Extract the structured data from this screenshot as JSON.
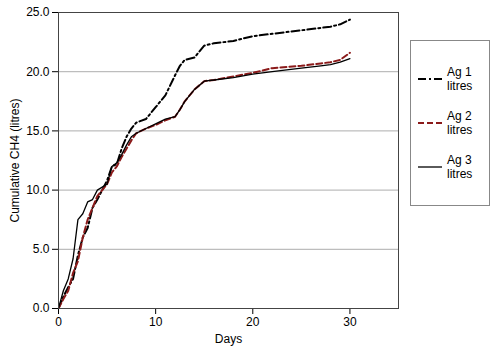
{
  "chart_data": {
    "type": "line",
    "x_label": "Days",
    "y_label": "Cumulative CH4 (litres)",
    "x": [
      0,
      0.5,
      1,
      1.5,
      2,
      2.5,
      3,
      3.5,
      4,
      5,
      5.5,
      6,
      6.5,
      7,
      7.5,
      8,
      9,
      10,
      11,
      12,
      12.5,
      13,
      14,
      15,
      16,
      18,
      20,
      22,
      25,
      27,
      28,
      29,
      30
    ],
    "series": [
      {
        "name": "Ag 1 litres",
        "color": "#000000",
        "line_style": "dashdot",
        "values": [
          0,
          1.0,
          1.8,
          2.5,
          4.5,
          6.0,
          6.8,
          8.5,
          9.2,
          10.8,
          12.0,
          12.2,
          13.5,
          14.5,
          15.2,
          15.7,
          16.0,
          17.0,
          18.0,
          19.7,
          20.5,
          21.0,
          21.2,
          22.2,
          22.4,
          22.6,
          23.0,
          23.2,
          23.5,
          23.7,
          23.8,
          24.0,
          24.4
        ]
      },
      {
        "name": "Ag 2 litres",
        "color": "#8b1a1a",
        "line_style": "dashed",
        "values": [
          0,
          0.8,
          1.5,
          3.0,
          4.0,
          6.0,
          7.5,
          8.5,
          9.5,
          10.5,
          11.5,
          12.0,
          12.8,
          13.5,
          14.2,
          14.8,
          15.2,
          15.5,
          15.9,
          16.2,
          16.8,
          17.5,
          18.5,
          19.2,
          19.3,
          19.6,
          19.9,
          20.3,
          20.5,
          20.7,
          20.8,
          21.0,
          21.6
        ]
      },
      {
        "name": "Ag 3 litres",
        "color": "#000000",
        "line_style": "solid",
        "values": [
          0,
          1.5,
          2.5,
          4.2,
          7.5,
          8.0,
          9.0,
          9.2,
          10.0,
          10.5,
          12.0,
          12.3,
          13.0,
          13.8,
          14.5,
          14.8,
          15.2,
          15.6,
          16.0,
          16.2,
          16.8,
          17.5,
          18.5,
          19.2,
          19.3,
          19.5,
          19.8,
          20.0,
          20.3,
          20.5,
          20.6,
          20.8,
          21.1
        ]
      }
    ],
    "xlim": [
      0,
      35
    ],
    "xticks": [
      0,
      10,
      20,
      30
    ],
    "ylim": [
      0,
      25
    ],
    "yticks": [
      {
        "value": 0,
        "label": "0.0"
      },
      {
        "value": 5,
        "label": "5.0"
      },
      {
        "value": 10,
        "label": "10.0"
      },
      {
        "value": 15,
        "label": "15.0"
      },
      {
        "value": 20,
        "label": "20.0"
      },
      {
        "value": 25,
        "label": "25.0"
      }
    ],
    "grid": true,
    "legend": "right"
  }
}
